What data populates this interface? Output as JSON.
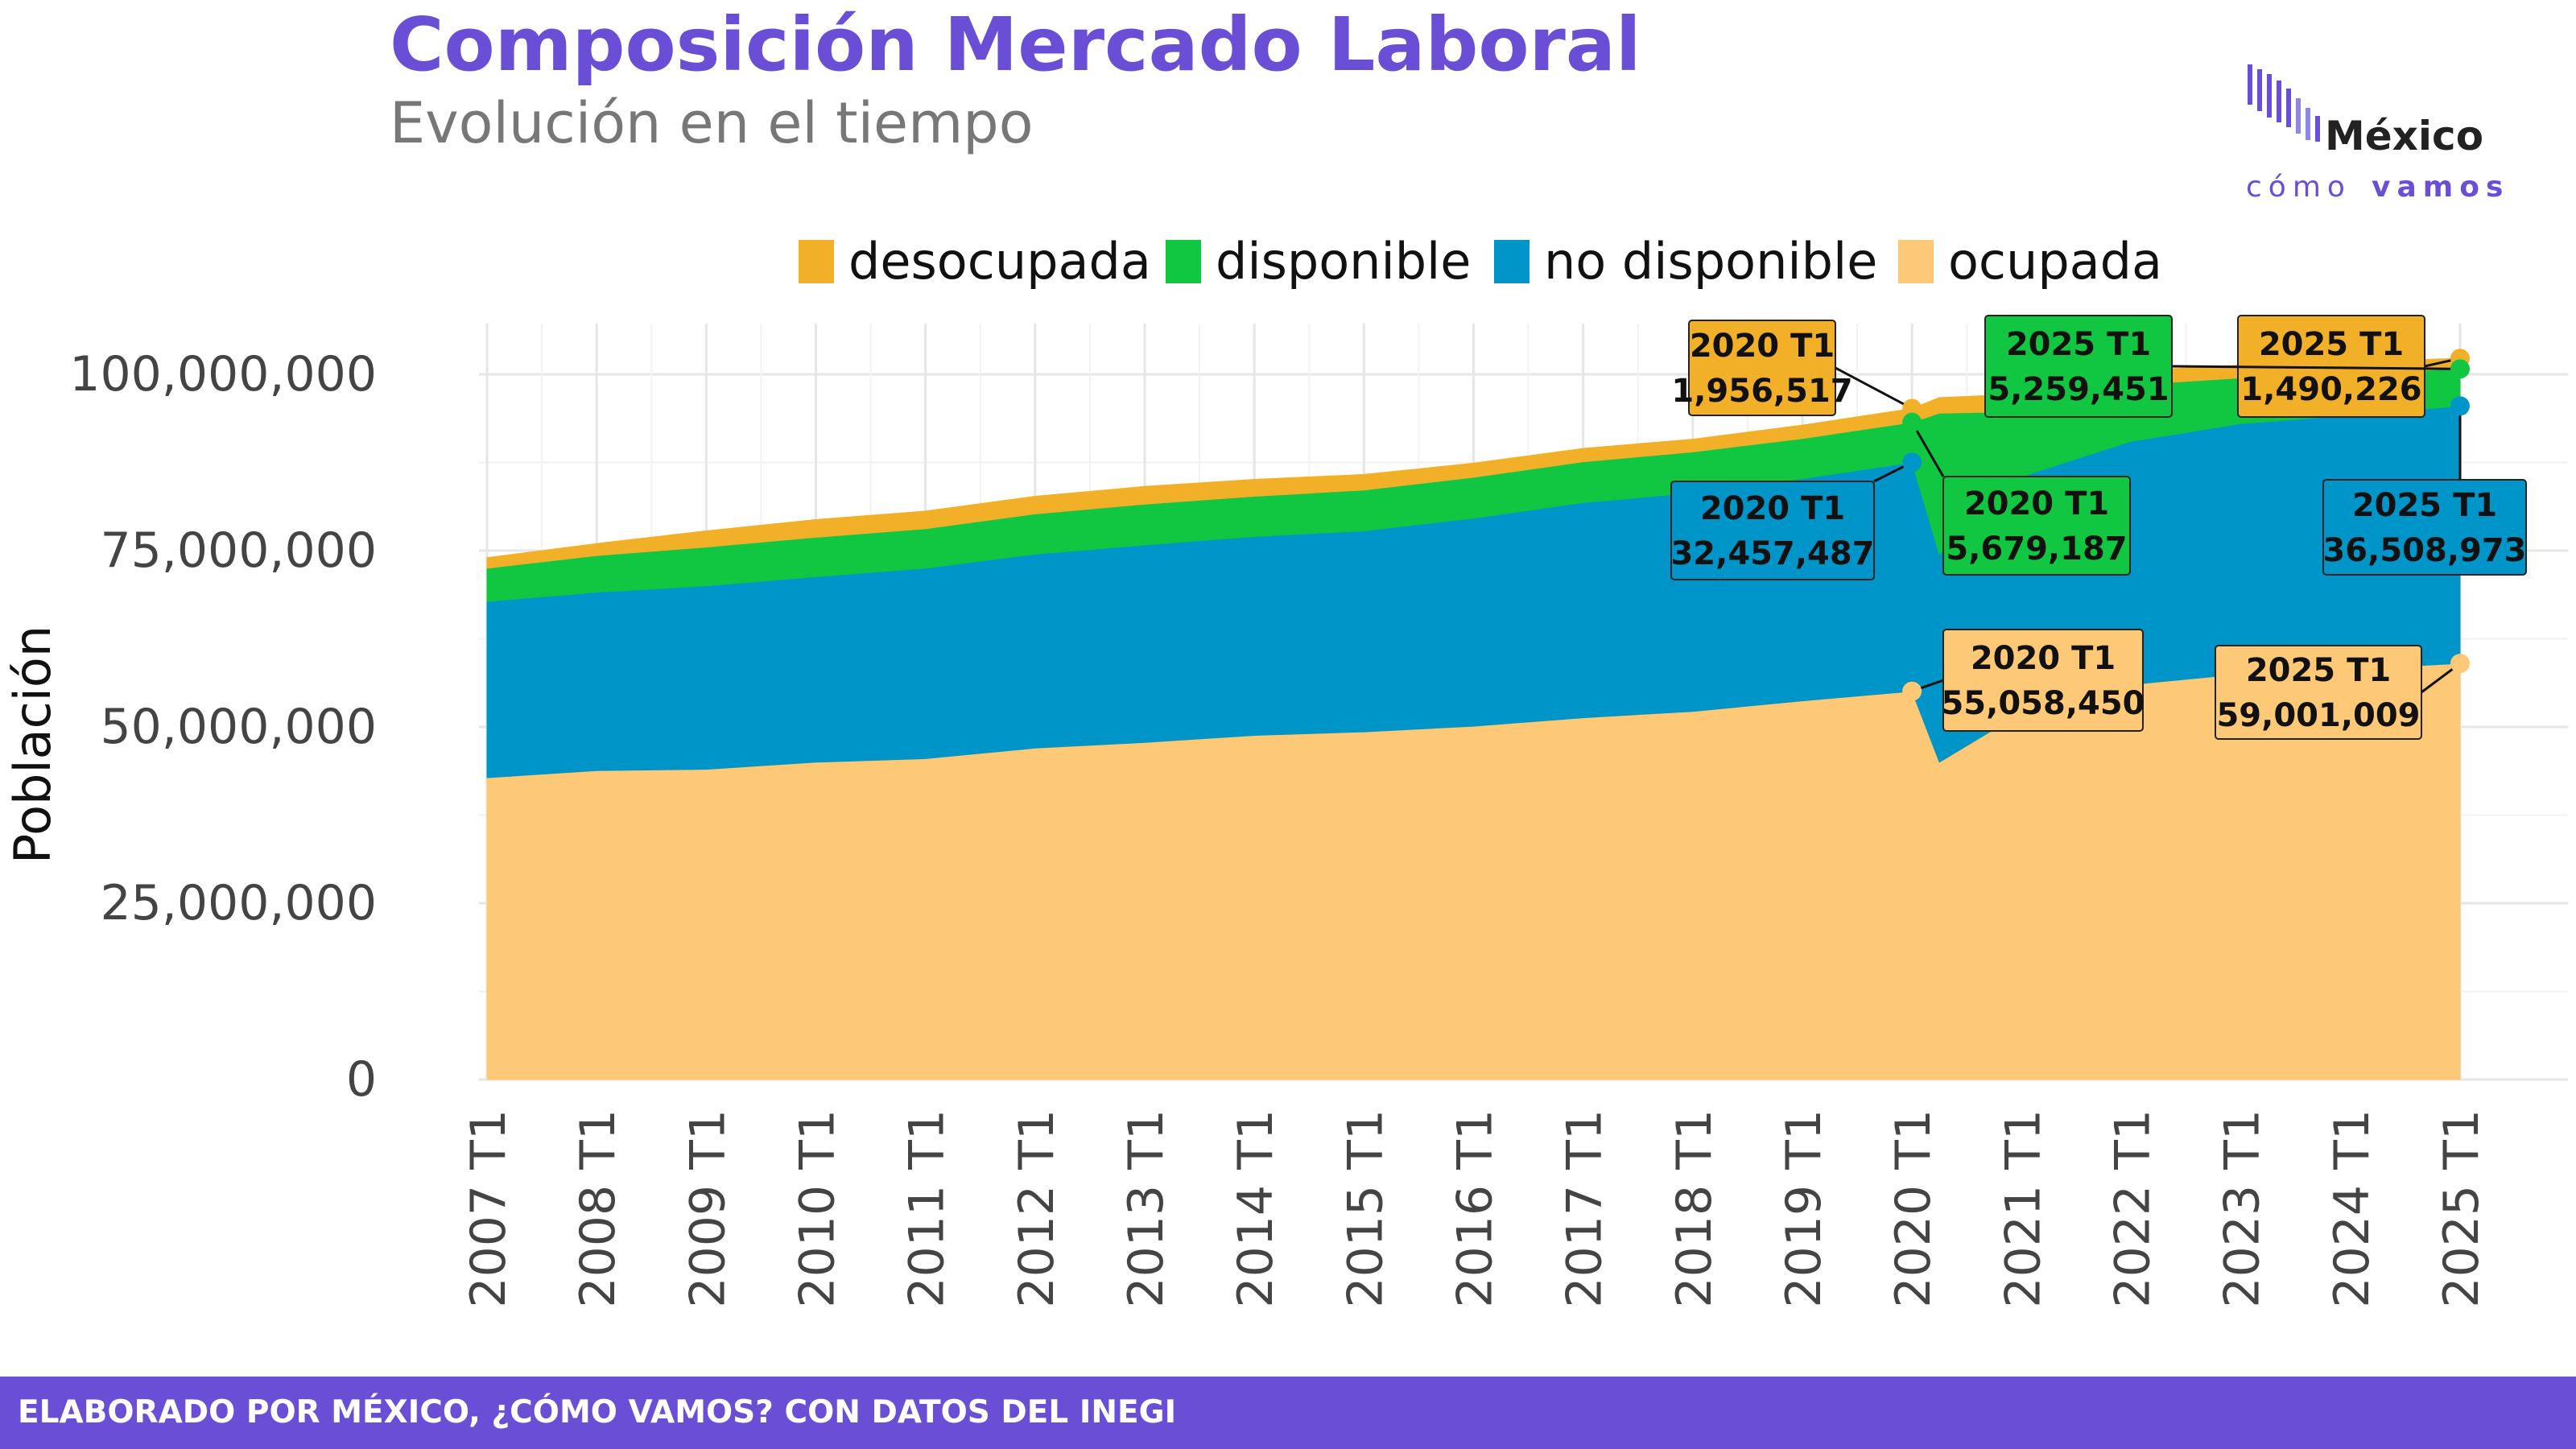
{
  "header": {
    "title": "Composición Mercado Laboral",
    "subtitle": "Evolución en el tiempo"
  },
  "logo": {
    "name": "México",
    "tagline_light": "cómo",
    "tagline_bold": "vamos"
  },
  "footer": {
    "text": "ELABORADO POR MÉXICO, ¿CÓMO VAMOS? CON DATOS DEL INEGI"
  },
  "colors": {
    "desocupada": "#f2b028",
    "disponible": "#11c640",
    "no_disponible": "#0095c8",
    "ocupada": "#fdc976",
    "accent": "#6a4fd6"
  },
  "chart_data": {
    "type": "area",
    "stacked": true,
    "ylabel": "Población",
    "ylim": [
      0,
      107000000
    ],
    "yticks": [
      0,
      25000000,
      50000000,
      75000000,
      100000000
    ],
    "ytick_labels": [
      "0",
      "25,000,000",
      "50,000,000",
      "75,000,000",
      "100,000,000"
    ],
    "xtick_labels": [
      "2007 T1",
      "2008 T1",
      "2009 T1",
      "2010 T1",
      "2011 T1",
      "2012 T1",
      "2013 T1",
      "2014 T1",
      "2015 T1",
      "2016 T1",
      "2017 T1",
      "2018 T1",
      "2019 T1",
      "2020 T1",
      "2021 T1",
      "2022 T1",
      "2023 T1",
      "2024 T1",
      "2025 T1"
    ],
    "grid": true,
    "legend_position": "top",
    "series": [
      {
        "name": "desocupada",
        "key": "desocupada",
        "x": [
          "2007 T1",
          "2008 T1",
          "2009 T1",
          "2010 T1",
          "2011 T1",
          "2012 T1",
          "2013 T1",
          "2014 T1",
          "2015 T1",
          "2016 T1",
          "2017 T1",
          "2018 T1",
          "2019 T1",
          "2020 T1",
          "2020 T2",
          "2021 T1",
          "2022 T1",
          "2023 T1",
          "2024 T1",
          "2025 T1"
        ],
        "values": [
          1500000,
          1700000,
          2300000,
          2500000,
          2500000,
          2500000,
          2500000,
          2400000,
          2200000,
          2000000,
          1900000,
          1800000,
          1900000,
          1956517,
          2200000,
          2500000,
          2000000,
          1800000,
          1600000,
          1490226
        ]
      },
      {
        "name": "disponible",
        "key": "disponible",
        "x": [
          "2007 T1",
          "2008 T1",
          "2009 T1",
          "2010 T1",
          "2011 T1",
          "2012 T1",
          "2013 T1",
          "2014 T1",
          "2015 T1",
          "2016 T1",
          "2017 T1",
          "2018 T1",
          "2019 T1",
          "2020 T1",
          "2020 T2",
          "2021 T1",
          "2022 T1",
          "2023 T1",
          "2024 T1",
          "2025 T1"
        ],
        "values": [
          4700000,
          5200000,
          5500000,
          5600000,
          5600000,
          5700000,
          5800000,
          5700000,
          5800000,
          5800000,
          5800000,
          5800000,
          5700000,
          5679187,
          20000000,
          9200000,
          8000000,
          6500000,
          6000000,
          5259451
        ]
      },
      {
        "name": "no disponible",
        "key": "no_disponible",
        "x": [
          "2007 T1",
          "2008 T1",
          "2009 T1",
          "2010 T1",
          "2011 T1",
          "2012 T1",
          "2013 T1",
          "2014 T1",
          "2015 T1",
          "2016 T1",
          "2017 T1",
          "2018 T1",
          "2019 T1",
          "2020 T1",
          "2020 T2",
          "2021 T1",
          "2022 T1",
          "2023 T1",
          "2024 T1",
          "2025 T1"
        ],
        "values": [
          25000000,
          25300000,
          26000000,
          26300000,
          27000000,
          27500000,
          28000000,
          28200000,
          28500000,
          29500000,
          30500000,
          31000000,
          31500000,
          32457487,
          29500000,
          33500000,
          34500000,
          35500000,
          36000000,
          36508973
        ]
      },
      {
        "name": "ocupada",
        "key": "ocupada",
        "x": [
          "2007 T1",
          "2008 T1",
          "2009 T1",
          "2010 T1",
          "2011 T1",
          "2012 T1",
          "2013 T1",
          "2014 T1",
          "2015 T1",
          "2016 T1",
          "2017 T1",
          "2018 T1",
          "2019 T1",
          "2020 T1",
          "2020 T2",
          "2021 T1",
          "2022 T1",
          "2023 T1",
          "2024 T1",
          "2025 T1"
        ],
        "values": [
          42800000,
          43800000,
          44000000,
          45000000,
          45500000,
          47000000,
          47800000,
          48800000,
          49300000,
          50100000,
          51300000,
          52200000,
          53700000,
          55058450,
          45000000,
          52000000,
          56000000,
          57500000,
          58200000,
          59001009
        ]
      }
    ],
    "annotations": [
      {
        "series": "desocupada",
        "x": "2020 T1",
        "title": "2020 T1",
        "value": "1,956,517"
      },
      {
        "series": "disponible",
        "x": "2020 T1",
        "title": "2020 T1",
        "value": "5,679,187"
      },
      {
        "series": "no_disponible",
        "x": "2020 T1",
        "title": "2020 T1",
        "value": "32,457,487"
      },
      {
        "series": "ocupada",
        "x": "2020 T1",
        "title": "2020 T1",
        "value": "55,058,450"
      },
      {
        "series": "desocupada",
        "x": "2025 T1",
        "title": "2025 T1",
        "value": "1,490,226"
      },
      {
        "series": "disponible",
        "x": "2025 T1",
        "title": "2025 T1",
        "value": "5,259,451"
      },
      {
        "series": "no_disponible",
        "x": "2025 T1",
        "title": "2025 T1",
        "value": "36,508,973"
      },
      {
        "series": "ocupada",
        "x": "2025 T1",
        "title": "2025 T1",
        "value": "59,001,009"
      }
    ]
  }
}
